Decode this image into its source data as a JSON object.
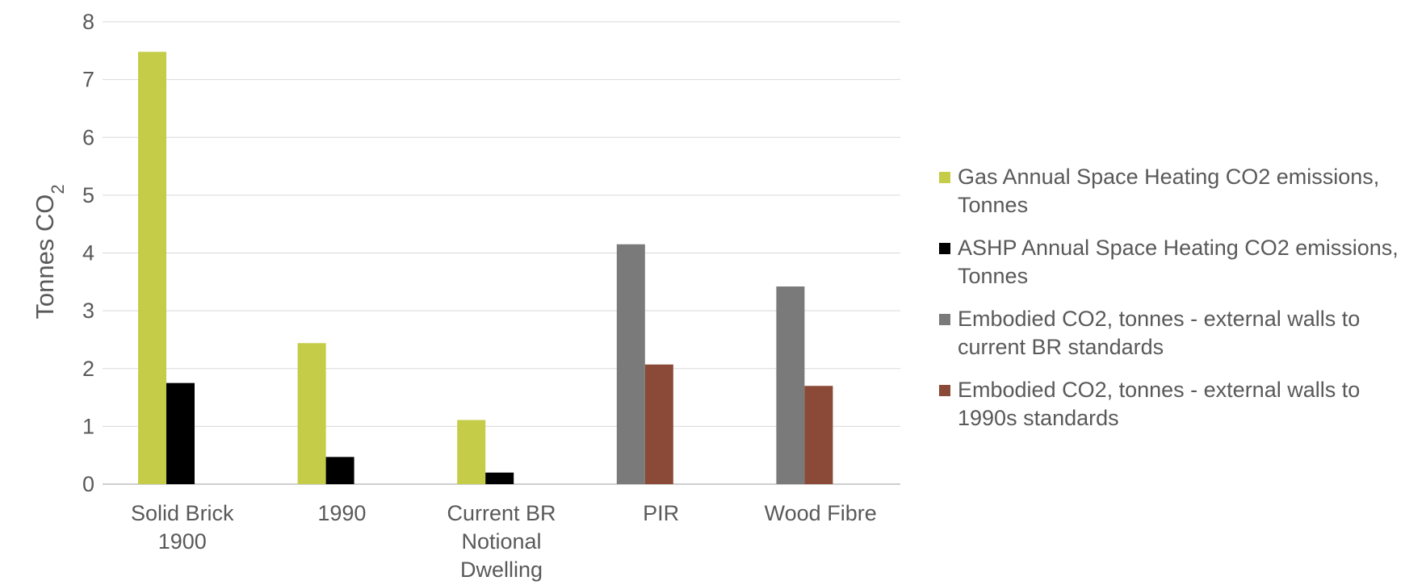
{
  "chart_data": {
    "type": "bar",
    "categories": [
      [
        "Solid Brick",
        "1900"
      ],
      [
        "1990"
      ],
      [
        "Current BR",
        "Notional",
        "Dwelling"
      ],
      [
        "PIR"
      ],
      [
        "Wood Fibre"
      ]
    ],
    "series": [
      {
        "name": "Gas Annual Space Heating CO2 emissions, Tonnes",
        "color": "#c4cc48",
        "values": [
          7.48,
          2.44,
          1.11,
          null,
          null
        ]
      },
      {
        "name": "ASHP Annual Space Heating CO2 emissions, Tonnes",
        "color": "#000000",
        "values": [
          1.75,
          0.47,
          0.2,
          null,
          null
        ]
      },
      {
        "name": "Embodied CO2, tonnes - external walls to current BR standards",
        "color": "#7a7a7a",
        "values": [
          null,
          null,
          null,
          4.15,
          3.42
        ]
      },
      {
        "name": "Embodied CO2, tonnes - external walls to 1990s standards",
        "color": "#8b4a38",
        "values": [
          null,
          null,
          null,
          2.07,
          1.7
        ]
      }
    ],
    "ylabel": "Tonnes CO",
    "ylabel_subscript": "2",
    "ylim": [
      0,
      8
    ],
    "yticks": [
      "0",
      "1",
      "2",
      "3",
      "4",
      "5",
      "6",
      "7",
      "8"
    ],
    "grid": true,
    "legend_position": "right"
  }
}
